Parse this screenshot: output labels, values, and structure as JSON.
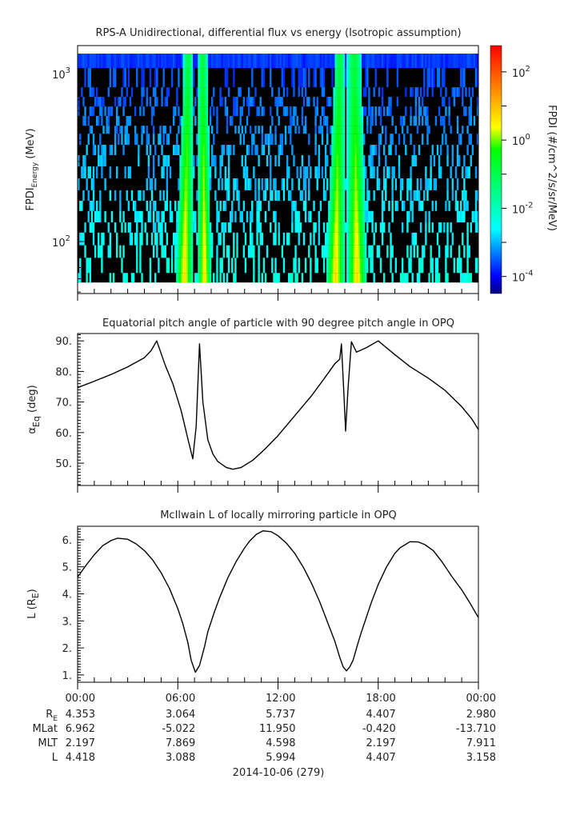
{
  "chart_data": [
    {
      "type": "heatmap",
      "title": "RPS-A Unidirectional, differential flux vs energy (Isotropic assumption)",
      "ylabel": {
        "main": "FPDI",
        "sub": "Energy",
        "unit": " (MeV)"
      },
      "yscale": "log",
      "ylim": [
        49,
        1470
      ],
      "ytick_labels": [
        {
          "base": "10",
          "exp": "2",
          "value": 100
        },
        {
          "base": "10",
          "exp": "3",
          "value": 1000
        }
      ],
      "xlim_hours": [
        0,
        24
      ],
      "energy_bin_edges_mev": [
        1315,
        1080,
        830,
        728,
        638,
        560,
        490,
        439,
        377,
        327,
        280,
        238,
        202,
        175,
        152,
        130,
        113,
        95,
        80,
        65,
        57
      ],
      "background_log_flux": -6,
      "top_bin_log_flux": -3.9,
      "enhancement_bands_hours": [
        [
          5.9,
          6.9
        ],
        [
          7.2,
          8.0
        ],
        [
          14.9,
          16.0
        ],
        [
          16.15,
          17.3
        ]
      ],
      "enhancement_peak_log_flux": 0.8,
      "colorbar": {
        "label": "FPDI (#/cm^2/s/sr/MeV)",
        "log_range": [
          -4.5,
          2.77
        ],
        "tick_labels": [
          {
            "base": "10",
            "exp": "2",
            "value": 2
          },
          {
            "base": "10",
            "exp": "0",
            "value": 0
          },
          {
            "base": "10",
            "exp": "-2",
            "value": -2
          },
          {
            "base": "10",
            "exp": "-4",
            "value": -4
          }
        ],
        "colors": [
          "#00007f",
          "#0000ff",
          "#00ffff",
          "#00ff00",
          "#ffff00",
          "#ff0000"
        ]
      }
    },
    {
      "type": "line",
      "title": "Equatorial pitch angle of particle with 90 degree pitch angle in OPQ",
      "ylabel": {
        "main": "α",
        "sub": "Eq",
        "unit": " (deg)"
      },
      "ylim": [
        42.7,
        92.4
      ],
      "ytick_labels": [
        "50.",
        "60.",
        "70.",
        "80.",
        "90."
      ],
      "x_hours": [
        0,
        1,
        2,
        3,
        4,
        4.4,
        4.74,
        5.25,
        5.7,
        6.2,
        6.6,
        6.9,
        7.1,
        7.3,
        7.5,
        7.8,
        8.1,
        8.4,
        8.9,
        9.3,
        9.8,
        10.5,
        11.2,
        12,
        13,
        14,
        14.85,
        15.4,
        15.7,
        15.8,
        15.95,
        16.05,
        16.2,
        16.4,
        16.7,
        17.3,
        18,
        19,
        19.9,
        21,
        22,
        23,
        23.6,
        24
      ],
      "y": [
        74.7,
        76.8,
        79,
        81.5,
        84.5,
        86.8,
        90,
        82,
        76,
        67.2,
        58,
        51.4,
        62,
        89,
        70,
        57.6,
        53,
        50.5,
        48.6,
        48,
        48.6,
        51,
        54.5,
        59,
        65.5,
        72,
        78.3,
        82.5,
        84,
        89,
        72,
        60.5,
        75,
        89.7,
        86.3,
        87.8,
        90,
        85.5,
        81.6,
        77.8,
        73.8,
        68.5,
        64.5,
        61
      ]
    },
    {
      "type": "line",
      "title": "McIlwain L of locally mirroring particle in OPQ",
      "ylabel": {
        "main": "L (R",
        "sub": "E",
        "unit": ")"
      },
      "ylim": [
        0.73,
        6.5
      ],
      "ytick_labels": [
        "1.",
        "2.",
        "3.",
        "4.",
        "5.",
        "6."
      ],
      "x_hours": [
        0,
        0.5,
        1,
        1.5,
        2,
        2.4,
        3,
        3.5,
        4,
        4.5,
        5,
        5.5,
        6,
        6.3,
        6.6,
        6.8,
        7.05,
        7.3,
        7.6,
        7.8,
        8.2,
        8.5,
        9,
        9.5,
        10,
        10.3,
        10.7,
        11.1,
        11.6,
        12,
        12.5,
        13,
        13.5,
        14,
        14.5,
        15,
        15.4,
        15.7,
        15.9,
        16.1,
        16.3,
        16.5,
        16.8,
        17,
        17.6,
        18,
        18.5,
        19,
        19.3,
        19.9,
        20.4,
        20.8,
        21.3,
        21.8,
        22.4,
        23,
        23.5,
        24
      ],
      "y": [
        4.62,
        5.05,
        5.45,
        5.78,
        5.97,
        6.06,
        6.02,
        5.85,
        5.6,
        5.25,
        4.78,
        4.2,
        3.45,
        2.9,
        2.2,
        1.55,
        1.1,
        1.35,
        2.05,
        2.6,
        3.35,
        3.85,
        4.6,
        5.2,
        5.7,
        5.95,
        6.2,
        6.33,
        6.3,
        6.15,
        5.88,
        5.5,
        5.0,
        4.4,
        3.7,
        2.9,
        2.25,
        1.65,
        1.3,
        1.15,
        1.3,
        1.55,
        2.2,
        2.6,
        3.7,
        4.35,
        5.0,
        5.5,
        5.7,
        5.93,
        5.92,
        5.82,
        5.6,
        5.2,
        4.65,
        4.15,
        3.65,
        3.12
      ]
    }
  ],
  "time_axis": {
    "tick_labels": [
      "00:00",
      "06:00",
      "12:00",
      "18:00",
      "00:00"
    ],
    "rows": [
      {
        "label": "R",
        "label_sub": "E",
        "values": [
          "4.353",
          "3.064",
          "5.737",
          "4.407",
          "2.980"
        ]
      },
      {
        "label": "MLat",
        "label_sub": "",
        "values": [
          "6.962",
          "-5.022",
          "11.950",
          "-0.420",
          "-13.710"
        ]
      },
      {
        "label": "MLT",
        "label_sub": "",
        "values": [
          "2.197",
          "7.869",
          "4.598",
          "2.197",
          "7.911"
        ]
      },
      {
        "label": "L",
        "label_sub": "",
        "values": [
          "4.418",
          "3.088",
          "5.994",
          "4.407",
          "3.158"
        ]
      }
    ],
    "date_label": "2014-10-06 (279)"
  }
}
